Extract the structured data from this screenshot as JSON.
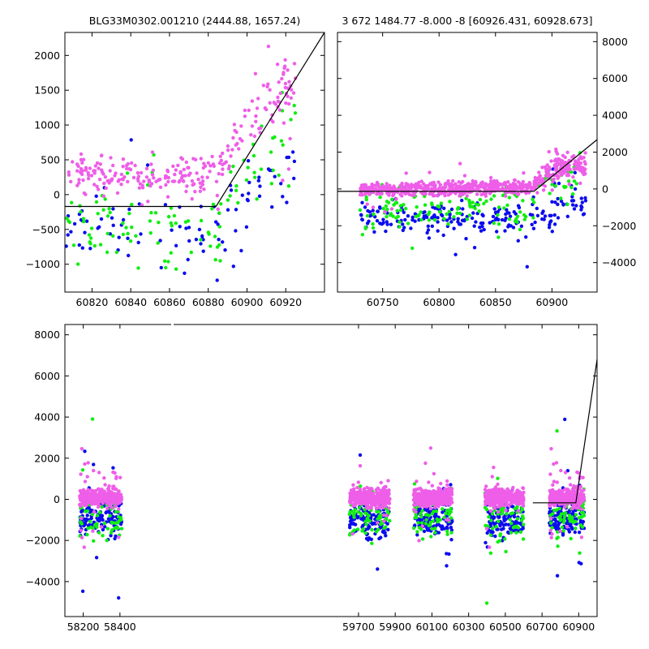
{
  "chart_data": [
    {
      "id": "top-left",
      "type": "scatter",
      "title": "BLG33M0302.001210 (2444.88, 1657.24)",
      "xlim": [
        60806,
        60940
      ],
      "ylim": [
        -1400,
        2330
      ],
      "xticks": [
        60820,
        60840,
        60860,
        60880,
        60900,
        60920
      ],
      "yticks": [
        -1000,
        -500,
        0,
        500,
        1000,
        1500,
        2000
      ],
      "ytick_side": "left",
      "colors": {
        "magenta": "#ee5ee8",
        "green": "#11ee11",
        "blue": "#0b0bee"
      },
      "series": [
        {
          "name": "magenta",
          "band": [
            [
              60806,
              -200,
              750
            ],
            [
              60885,
              -200,
              750
            ],
            [
              60900,
              200,
              2000
            ],
            [
              60925,
              800,
              2300
            ]
          ],
          "n": 260
        },
        {
          "name": "green",
          "band": [
            [
              60806,
              -1400,
              450
            ],
            [
              60885,
              -1400,
              450
            ],
            [
              60900,
              -600,
              1500
            ],
            [
              60925,
              0,
              2000
            ]
          ],
          "n": 110
        },
        {
          "name": "blue",
          "band": [
            [
              60806,
              -1400,
              450
            ],
            [
              60885,
              -1400,
              300
            ],
            [
              60900,
              -1200,
              1000
            ],
            [
              60925,
              -1000,
              1600
            ]
          ],
          "n": 95
        }
      ],
      "model": [
        [
          60806,
          -170
        ],
        [
          60884,
          -170
        ],
        [
          60940,
          2330
        ]
      ]
    },
    {
      "id": "top-right",
      "type": "scatter",
      "title": "3 672 1484.77 -8.000 -8 [60926.431, 60928.673]",
      "xlim": [
        60710,
        60940
      ],
      "ylim": [
        -5600,
        8500
      ],
      "xticks": [
        60750,
        60800,
        60850,
        60900
      ],
      "yticks": [
        -4000,
        -2000,
        0,
        2000,
        4000,
        6000,
        8000
      ],
      "ytick_side": "right",
      "colors": {
        "magenta": "#ee5ee8",
        "green": "#11ee11",
        "blue": "#0b0bee"
      },
      "series": [
        {
          "name": "magenta",
          "band": [
            [
              60730,
              -600,
              500
            ],
            [
              60880,
              -600,
              800
            ],
            [
              60905,
              0,
              2500
            ],
            [
              60930,
              0,
              2500
            ]
          ],
          "n": 700
        },
        {
          "name": "green",
          "band": [
            [
              60730,
              -2800,
              800
            ],
            [
              60880,
              -2800,
              800
            ],
            [
              60905,
              -1500,
              2500
            ],
            [
              60930,
              -1500,
              2500
            ]
          ],
          "n": 150
        },
        {
          "name": "blue",
          "band": [
            [
              60730,
              -2800,
              0
            ],
            [
              60880,
              -3500,
              0
            ],
            [
              60905,
              -3000,
              1500
            ],
            [
              60930,
              -3000,
              1500
            ]
          ],
          "n": 220
        }
      ],
      "model": [
        [
          60710,
          -130
        ],
        [
          60884,
          -130
        ],
        [
          60940,
          2680
        ]
      ]
    },
    {
      "id": "bottom",
      "type": "scatter",
      "title": "",
      "xlim": [
        58100,
        61000
      ],
      "ylim": [
        -5700,
        8500
      ],
      "xticks": [
        58200,
        58400,
        59700,
        59900,
        60100,
        60300,
        60500,
        60700,
        60900
      ],
      "yticks": [
        -4000,
        -2000,
        0,
        2000,
        4000,
        6000,
        8000
      ],
      "ytick_side": "left",
      "colors": {
        "magenta": "#ee5ee8",
        "green": "#11ee11",
        "blue": "#0b0bee"
      },
      "seasons": [
        [
          58180,
          58410
        ],
        [
          59650,
          59870
        ],
        [
          60000,
          60210
        ],
        [
          60390,
          60600
        ],
        [
          60740,
          60930
        ]
      ],
      "series": [
        {
          "name": "magenta",
          "band": [
            [
              58100,
              -700,
              900
            ]
          ],
          "n_per_season": 320
        },
        {
          "name": "green",
          "band": [
            [
              58100,
              -3000,
              1500
            ]
          ],
          "n_per_season": 70
        },
        {
          "name": "blue",
          "band": [
            [
              58100,
              -2500,
              700
            ]
          ],
          "n_per_season": 130
        }
      ],
      "model": [
        [
          60650,
          -170
        ],
        [
          60884,
          -170
        ],
        [
          61000,
          6800
        ]
      ]
    }
  ]
}
